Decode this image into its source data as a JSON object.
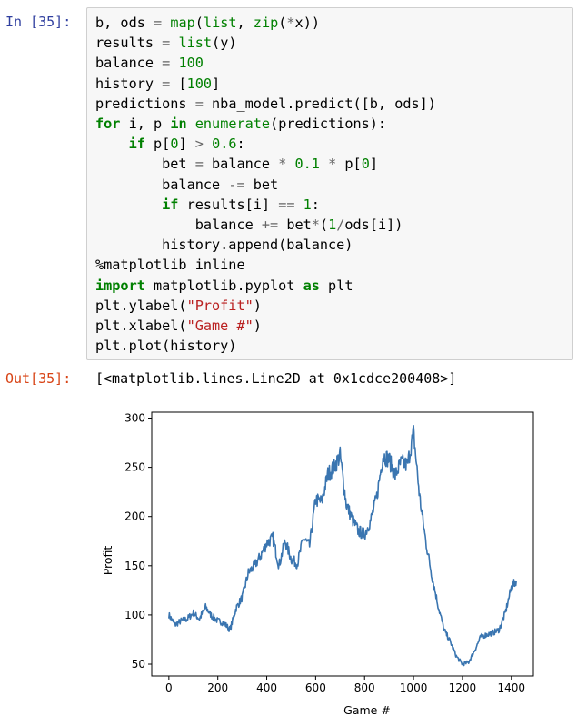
{
  "cell": {
    "in_prompt": "In [35]:",
    "out_prompt": "Out[35]:",
    "output_text": "[<matplotlib.lines.Line2D at 0x1cdce200408>]"
  },
  "code_lines": [
    "b, ods = map(list, zip(*x))",
    "results = list(y)",
    "balance = 100",
    "history = [100]",
    "predictions = nba_model.predict([b, ods])",
    "for i, p in enumerate(predictions):",
    "    if p[0] > 0.6:",
    "        bet = balance * 0.1 * p[0]",
    "        balance -= bet",
    "        if results[i] == 1:",
    "            balance += bet*(1/ods[i])",
    "        history.append(balance)",
    "%matplotlib inline",
    "import matplotlib.pyplot as plt",
    "plt.ylabel(\"Profit\")",
    "plt.xlabel(\"Game #\")",
    "plt.plot(history)"
  ],
  "chart_data": {
    "type": "line",
    "xlabel": "Game #",
    "ylabel": "Profit",
    "xlim": [
      -70,
      1490
    ],
    "ylim": [
      38,
      306
    ],
    "xticks": [
      0,
      200,
      400,
      600,
      800,
      1000,
      1200,
      1400
    ],
    "yticks": [
      50,
      100,
      150,
      200,
      250,
      300
    ],
    "line_color": "#3a75b0",
    "series": [
      {
        "x": [
          0,
          25,
          50,
          75,
          100,
          125,
          150,
          175,
          200,
          225,
          250,
          275,
          300,
          325,
          350,
          375,
          400,
          425,
          450,
          475,
          500,
          525,
          550,
          575,
          600,
          625,
          650,
          675,
          700,
          725,
          750,
          775,
          800,
          825,
          850,
          875,
          900,
          925,
          950,
          975,
          1000,
          1025,
          1050,
          1075,
          1100,
          1125,
          1150,
          1175,
          1200,
          1225,
          1250,
          1275,
          1300,
          1325,
          1350,
          1375,
          1400,
          1420
        ],
        "y": [
          100,
          90,
          94,
          96,
          102,
          96,
          108,
          99,
          94,
          92,
          85,
          107,
          118,
          143,
          150,
          160,
          173,
          178,
          150,
          175,
          157,
          152,
          178,
          170,
          217,
          215,
          243,
          250,
          262,
          213,
          197,
          185,
          182,
          196,
          220,
          262,
          258,
          242,
          255,
          252,
          285,
          220,
          175,
          140,
          110,
          85,
          73,
          58,
          50,
          52,
          64,
          78,
          80,
          82,
          85,
          102,
          128,
          135
        ]
      }
    ]
  }
}
